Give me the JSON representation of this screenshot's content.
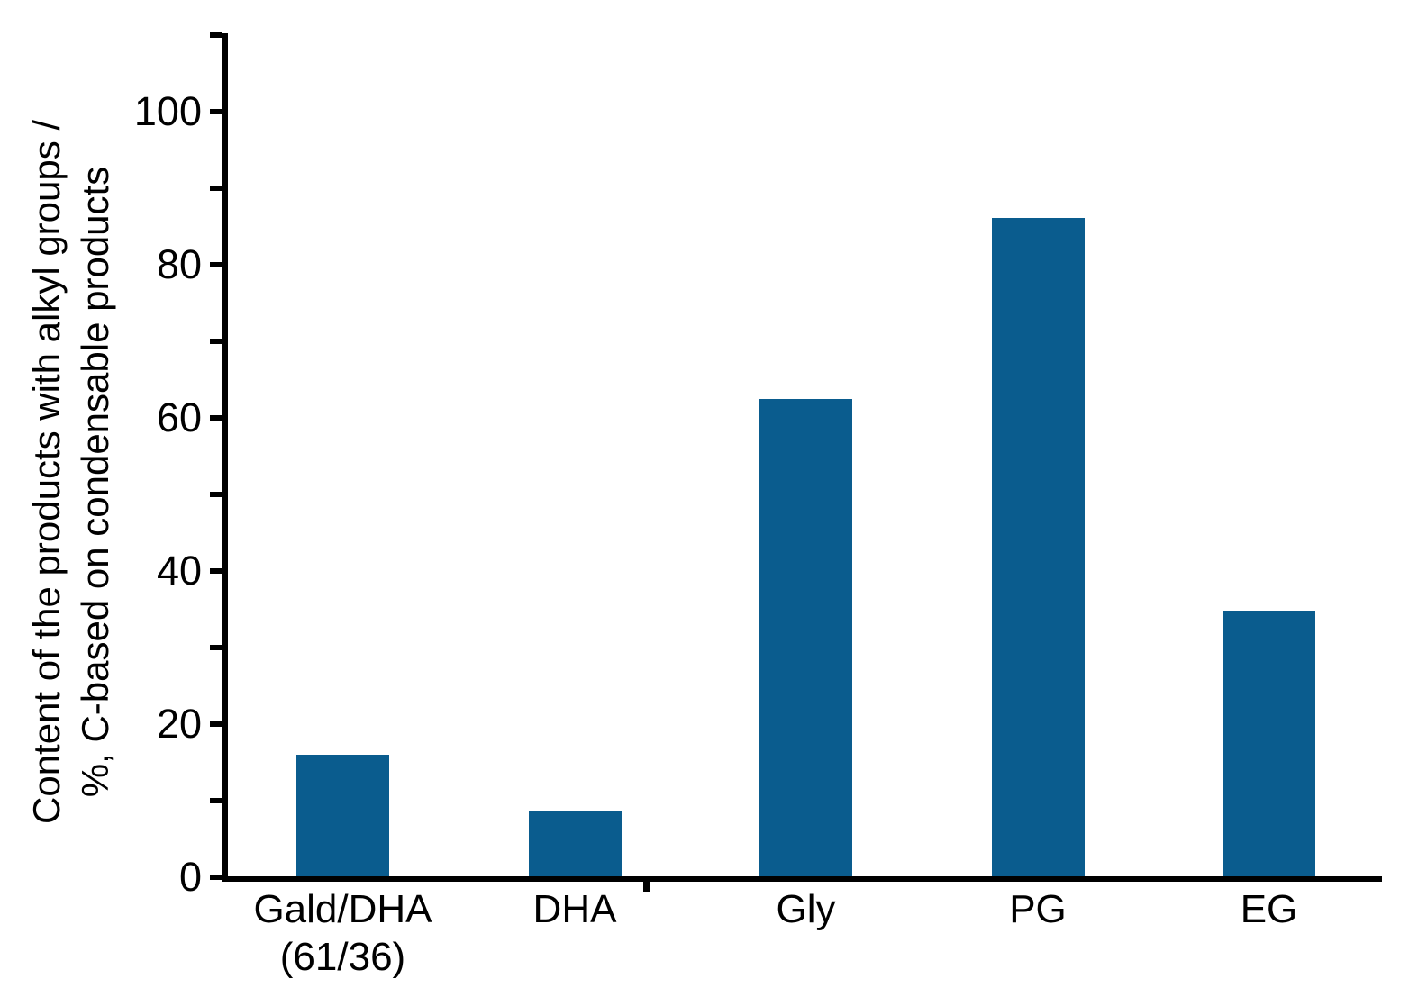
{
  "figure": {
    "background": "#ffffff",
    "axis_color": "#000000"
  },
  "chart_data": {
    "type": "bar",
    "title": "",
    "categories": [
      "Gald/DHA",
      "DHA",
      "Gly",
      "PG",
      "EG"
    ],
    "category_sublabels": [
      "(61/36)",
      "",
      "",
      "",
      ""
    ],
    "values": [
      15.9,
      8.6,
      62.4,
      86.0,
      34.7
    ],
    "bar_color": "#0a5c8e",
    "ylabel_line1": "Content of the products with alkyl groups /",
    "ylabel_line2": "%, C-based on condensable products",
    "xlabel": "",
    "ylim": [
      0,
      110
    ],
    "ytick_minor_interval": 10,
    "ytick_labels": [
      "0",
      "20",
      "40",
      "60",
      "80",
      "100"
    ],
    "ytick_label_values": [
      0,
      20,
      40,
      60,
      80,
      100
    ],
    "grid": false,
    "legend": null
  }
}
